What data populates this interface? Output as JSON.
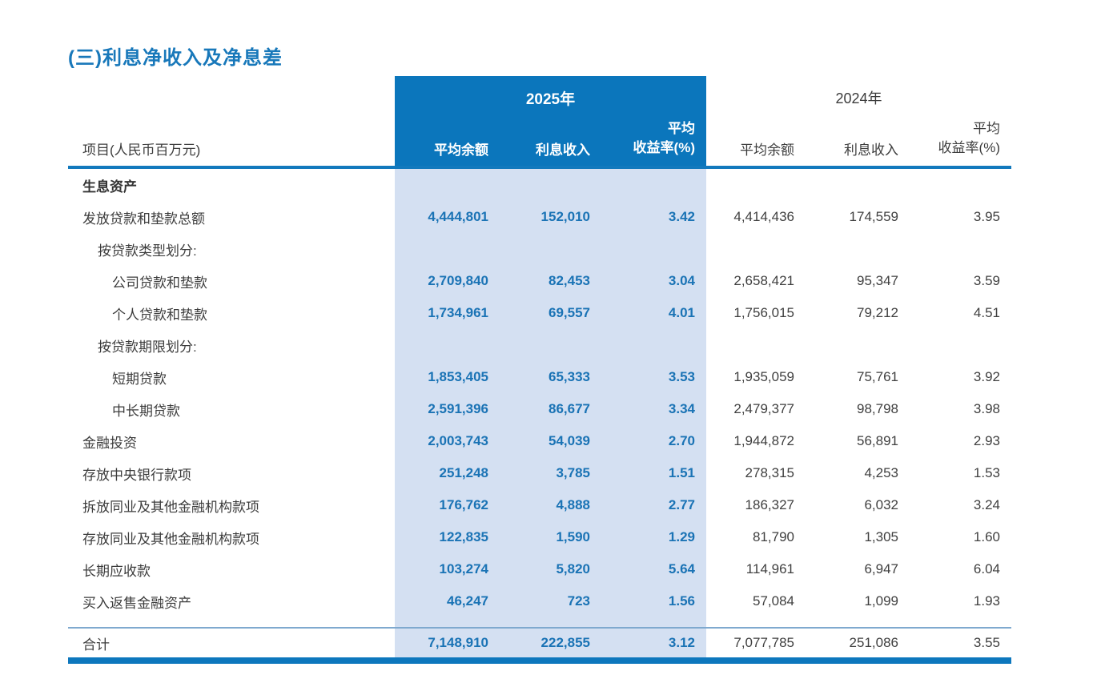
{
  "title": "(三)利息净收入及净息差",
  "colors": {
    "accent_blue": "#0b76bc",
    "band_light_blue": "#d4e0f2",
    "value_blue": "#1a73b5",
    "text_dark": "#3c3c3c",
    "title_blue": "#1878ba"
  },
  "table": {
    "item_header": "项目(人民币百万元)",
    "year_2025": "2025年",
    "year_2024": "2024年",
    "sub": {
      "avg_balance": "平均余额",
      "interest_income": "利息收入",
      "yield1": "平均",
      "yield2": "收益率(%)"
    },
    "rows": [
      {
        "label": "生息资产"
      },
      {
        "label": "发放贷款和垫款总额",
        "avg25": "4,444,801",
        "int25": "152,010",
        "yld25": "3.42",
        "avg24": "4,414,436",
        "int24": "174,559",
        "yld24": "3.95"
      },
      {
        "label": "按贷款类型划分:"
      },
      {
        "label": "公司贷款和垫款",
        "avg25": "2,709,840",
        "int25": "82,453",
        "yld25": "3.04",
        "avg24": "2,658,421",
        "int24": "95,347",
        "yld24": "3.59"
      },
      {
        "label": "个人贷款和垫款",
        "avg25": "1,734,961",
        "int25": "69,557",
        "yld25": "4.01",
        "avg24": "1,756,015",
        "int24": "79,212",
        "yld24": "4.51"
      },
      {
        "label": "按贷款期限划分:"
      },
      {
        "label": "短期贷款",
        "avg25": "1,853,405",
        "int25": "65,333",
        "yld25": "3.53",
        "avg24": "1,935,059",
        "int24": "75,761",
        "yld24": "3.92"
      },
      {
        "label": "中长期贷款",
        "avg25": "2,591,396",
        "int25": "86,677",
        "yld25": "3.34",
        "avg24": "2,479,377",
        "int24": "98,798",
        "yld24": "3.98"
      },
      {
        "label": "金融投资",
        "avg25": "2,003,743",
        "int25": "54,039",
        "yld25": "2.70",
        "avg24": "1,944,872",
        "int24": "56,891",
        "yld24": "2.93"
      },
      {
        "label": "存放中央银行款项",
        "avg25": "251,248",
        "int25": "3,785",
        "yld25": "1.51",
        "avg24": "278,315",
        "int24": "4,253",
        "yld24": "1.53"
      },
      {
        "label": "拆放同业及其他金融机构款项",
        "avg25": "176,762",
        "int25": "4,888",
        "yld25": "2.77",
        "avg24": "186,327",
        "int24": "6,032",
        "yld24": "3.24"
      },
      {
        "label": "存放同业及其他金融机构款项",
        "avg25": "122,835",
        "int25": "1,590",
        "yld25": "1.29",
        "avg24": "81,790",
        "int24": "1,305",
        "yld24": "1.60"
      },
      {
        "label": "长期应收款",
        "avg25": "103,274",
        "int25": "5,820",
        "yld25": "5.64",
        "avg24": "114,961",
        "int24": "6,947",
        "yld24": "6.04"
      },
      {
        "label": "买入返售金融资产",
        "avg25": "46,247",
        "int25": "723",
        "yld25": "1.56",
        "avg24": "57,084",
        "int24": "1,099",
        "yld24": "1.93"
      }
    ],
    "total": {
      "label": "合计",
      "avg25": "7,148,910",
      "int25": "222,855",
      "yld25": "3.12",
      "avg24": "7,077,785",
      "int24": "251,086",
      "yld24": "3.55"
    }
  }
}
